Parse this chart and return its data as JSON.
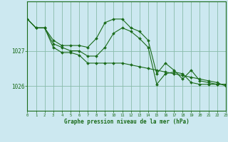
{
  "title": "Graphe pression niveau de la mer (hPa)",
  "bg_color": "#cce8f0",
  "grid_color": "#88bbaa",
  "line_color": "#1a6b1a",
  "xlim": [
    0,
    23
  ],
  "ylim": [
    1025.3,
    1028.4
  ],
  "yticks": [
    1026,
    1027
  ],
  "xticks": [
    0,
    1,
    2,
    3,
    4,
    5,
    6,
    7,
    8,
    9,
    10,
    11,
    12,
    13,
    14,
    15,
    16,
    17,
    18,
    19,
    20,
    21,
    22,
    23
  ],
  "series": [
    {
      "x": [
        0,
        1,
        2,
        3,
        4,
        5,
        6,
        7,
        8,
        9,
        10,
        11,
        12,
        13,
        14,
        15,
        16,
        17,
        18,
        19,
        20,
        21,
        22,
        23
      ],
      "y": [
        1027.9,
        1027.65,
        1027.65,
        1027.3,
        1027.15,
        1027.15,
        1027.15,
        1027.1,
        1027.35,
        1027.8,
        1027.9,
        1027.9,
        1027.65,
        1027.55,
        1027.3,
        1026.35,
        1026.65,
        1026.45,
        1026.2,
        1026.45,
        1026.15,
        1026.1,
        1026.05,
        1026.05
      ]
    },
    {
      "x": [
        0,
        1,
        2,
        3,
        4,
        5,
        6,
        7,
        8,
        9,
        10,
        11,
        12,
        13,
        14,
        15,
        16,
        17,
        18,
        19,
        20,
        21,
        22,
        23
      ],
      "y": [
        1027.9,
        1027.65,
        1027.65,
        1027.2,
        1027.1,
        1027.0,
        1027.0,
        1026.85,
        1026.85,
        1027.1,
        1027.5,
        1027.65,
        1027.55,
        1027.35,
        1027.1,
        1026.05,
        1026.35,
        1026.4,
        1026.35,
        1026.1,
        1026.05,
        1026.05,
        1026.05,
        1026.05
      ]
    },
    {
      "x": [
        0,
        1,
        2,
        3,
        4,
        5,
        6,
        7,
        8,
        9,
        10,
        11,
        12,
        13,
        14,
        15,
        16,
        17,
        18,
        19,
        20,
        21,
        22,
        23
      ],
      "y": [
        1027.9,
        1027.65,
        1027.65,
        1027.1,
        1026.95,
        1026.95,
        1026.88,
        1026.65,
        1026.65,
        1026.65,
        1026.65,
        1026.65,
        1026.6,
        1026.55,
        1026.5,
        1026.45,
        1026.4,
        1026.35,
        1026.3,
        1026.25,
        1026.2,
        1026.15,
        1026.1,
        1026.0
      ]
    }
  ]
}
